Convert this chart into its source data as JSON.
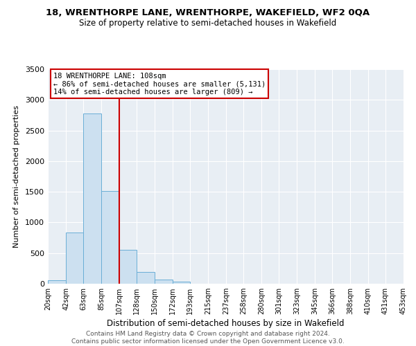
{
  "title": "18, WRENTHORPE LANE, WRENTHORPE, WAKEFIELD, WF2 0QA",
  "subtitle": "Size of property relative to semi-detached houses in Wakefield",
  "xlabel": "Distribution of semi-detached houses by size in Wakefield",
  "ylabel": "Number of semi-detached properties",
  "footer_lines": [
    "Contains HM Land Registry data © Crown copyright and database right 2024.",
    "Contains public sector information licensed under the Open Government Licence v3.0."
  ],
  "bin_edges": [
    20,
    42,
    63,
    85,
    107,
    128,
    150,
    172,
    193,
    215,
    237,
    258,
    280,
    301,
    323,
    345,
    366,
    388,
    410,
    431,
    453
  ],
  "bin_labels": [
    "20sqm",
    "42sqm",
    "63sqm",
    "85sqm",
    "107sqm",
    "128sqm",
    "150sqm",
    "172sqm",
    "193sqm",
    "215sqm",
    "237sqm",
    "258sqm",
    "280sqm",
    "301sqm",
    "323sqm",
    "345sqm",
    "366sqm",
    "388sqm",
    "410sqm",
    "431sqm",
    "453sqm"
  ],
  "counts": [
    60,
    830,
    2780,
    1510,
    555,
    190,
    65,
    30,
    0,
    0,
    0,
    0,
    0,
    0,
    0,
    0,
    0,
    0,
    0,
    0
  ],
  "bar_color": "#cce0f0",
  "bar_edge_color": "#6aaed6",
  "vline_x": 107,
  "vline_color": "#cc0000",
  "annotation_title": "18 WRENTHORPE LANE: 108sqm",
  "annotation_line1": "← 86% of semi-detached houses are smaller (5,131)",
  "annotation_line2": "14% of semi-detached houses are larger (809) →",
  "annotation_box_color": "#cc0000",
  "bg_color": "#e8eef4",
  "ylim": [
    0,
    3500
  ],
  "yticks": [
    0,
    500,
    1000,
    1500,
    2000,
    2500,
    3000,
    3500
  ]
}
